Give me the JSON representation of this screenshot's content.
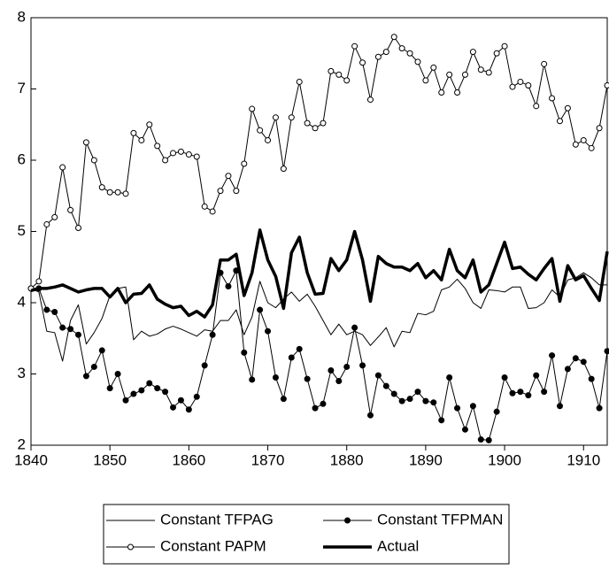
{
  "chart_data": {
    "type": "line",
    "x": [
      1840,
      1841,
      1842,
      1843,
      1844,
      1845,
      1846,
      1847,
      1848,
      1849,
      1850,
      1851,
      1852,
      1853,
      1854,
      1855,
      1856,
      1857,
      1858,
      1859,
      1860,
      1861,
      1862,
      1863,
      1864,
      1865,
      1866,
      1867,
      1868,
      1869,
      1870,
      1871,
      1872,
      1873,
      1874,
      1875,
      1876,
      1877,
      1878,
      1879,
      1880,
      1881,
      1882,
      1883,
      1884,
      1885,
      1886,
      1887,
      1888,
      1889,
      1890,
      1891,
      1892,
      1893,
      1894,
      1895,
      1896,
      1897,
      1898,
      1899,
      1900,
      1901,
      1902,
      1903,
      1904,
      1905,
      1906,
      1907,
      1908,
      1909,
      1910,
      1911,
      1912,
      1913
    ],
    "xlim": [
      1840,
      1913
    ],
    "xticks": [
      1840,
      1850,
      1860,
      1870,
      1880,
      1890,
      1900,
      1910
    ],
    "ylim": [
      2,
      8
    ],
    "yticks": [
      2,
      3,
      4,
      5,
      6,
      7,
      8
    ],
    "series": [
      {
        "name": "Constant TFPAG",
        "color": "#000000",
        "width": 1,
        "marker": "none",
        "values": [
          4.2,
          4.15,
          3.6,
          3.58,
          3.18,
          3.75,
          3.97,
          3.42,
          3.58,
          3.78,
          4.1,
          4.2,
          4.22,
          3.48,
          3.6,
          3.53,
          3.56,
          3.63,
          3.67,
          3.63,
          3.58,
          3.53,
          3.62,
          3.6,
          3.75,
          3.75,
          3.9,
          3.55,
          3.8,
          4.3,
          4.0,
          3.93,
          4.05,
          4.15,
          4.02,
          4.12,
          3.95,
          3.75,
          3.55,
          3.7,
          3.55,
          3.6,
          3.55,
          3.4,
          3.52,
          3.65,
          3.38,
          3.6,
          3.58,
          3.85,
          3.83,
          3.88,
          4.18,
          4.22,
          4.33,
          4.2,
          4.0,
          3.92,
          4.18,
          4.17,
          4.15,
          4.22,
          4.22,
          3.92,
          3.93,
          4.0,
          4.18,
          4.08,
          4.32,
          4.35,
          4.42,
          4.35,
          4.25,
          4.25
        ]
      },
      {
        "name": "Constant TFPMAN",
        "color": "#000000",
        "width": 1,
        "marker": "filled",
        "values": [
          4.2,
          4.2,
          3.9,
          3.87,
          3.65,
          3.63,
          3.55,
          2.97,
          3.1,
          3.33,
          2.8,
          3.0,
          2.63,
          2.72,
          2.77,
          2.87,
          2.8,
          2.75,
          2.53,
          2.63,
          2.5,
          2.68,
          3.12,
          3.55,
          4.42,
          4.23,
          4.45,
          3.3,
          2.92,
          3.9,
          3.6,
          2.95,
          2.65,
          3.23,
          3.35,
          2.93,
          2.52,
          2.58,
          3.05,
          2.9,
          3.1,
          3.65,
          3.12,
          2.42,
          2.98,
          2.83,
          2.72,
          2.62,
          2.65,
          2.75,
          2.62,
          2.6,
          2.35,
          2.95,
          2.52,
          2.22,
          2.55,
          2.08,
          2.07,
          2.47,
          2.95,
          2.73,
          2.75,
          2.7,
          2.98,
          2.75,
          3.26,
          2.55,
          3.07,
          3.22,
          3.17,
          2.93,
          2.52,
          3.32
        ]
      },
      {
        "name": "Constant PAPM",
        "color": "#000000",
        "width": 1,
        "marker": "open",
        "values": [
          4.2,
          4.3,
          5.1,
          5.2,
          5.9,
          5.3,
          5.05,
          6.25,
          6.0,
          5.62,
          5.55,
          5.55,
          5.53,
          6.38,
          6.28,
          6.5,
          6.2,
          6.0,
          6.1,
          6.12,
          6.08,
          6.05,
          5.35,
          5.28,
          5.57,
          5.78,
          5.57,
          5.95,
          6.72,
          6.42,
          6.28,
          6.6,
          5.88,
          6.6,
          7.1,
          6.52,
          6.45,
          6.52,
          7.25,
          7.2,
          7.12,
          7.6,
          7.37,
          6.85,
          7.45,
          7.52,
          7.73,
          7.57,
          7.5,
          7.38,
          7.12,
          7.3,
          6.95,
          7.2,
          6.95,
          7.2,
          7.52,
          7.27,
          7.23,
          7.5,
          7.6,
          7.03,
          7.1,
          7.05,
          6.76,
          7.35,
          6.87,
          6.55,
          6.73,
          6.22,
          6.28,
          6.17,
          6.45,
          7.05
        ]
      },
      {
        "name": "Actual",
        "color": "#000000",
        "width": 3.5,
        "marker": "none",
        "values": [
          4.17,
          4.2,
          4.2,
          4.22,
          4.25,
          4.2,
          4.15,
          4.18,
          4.2,
          4.2,
          4.08,
          4.2,
          4.0,
          4.12,
          4.13,
          4.25,
          4.05,
          3.98,
          3.93,
          3.95,
          3.82,
          3.88,
          3.8,
          3.97,
          4.6,
          4.6,
          4.68,
          4.1,
          4.42,
          5.02,
          4.6,
          4.37,
          3.92,
          4.7,
          4.92,
          4.42,
          4.12,
          4.13,
          4.62,
          4.45,
          4.6,
          5.0,
          4.6,
          4.02,
          4.65,
          4.55,
          4.5,
          4.5,
          4.45,
          4.55,
          4.35,
          4.45,
          4.32,
          4.75,
          4.45,
          4.35,
          4.6,
          4.15,
          4.25,
          4.55,
          4.85,
          4.48,
          4.5,
          4.4,
          4.32,
          4.48,
          4.62,
          4.02,
          4.52,
          4.32,
          4.38,
          4.2,
          4.03,
          4.72
        ]
      }
    ]
  }
}
